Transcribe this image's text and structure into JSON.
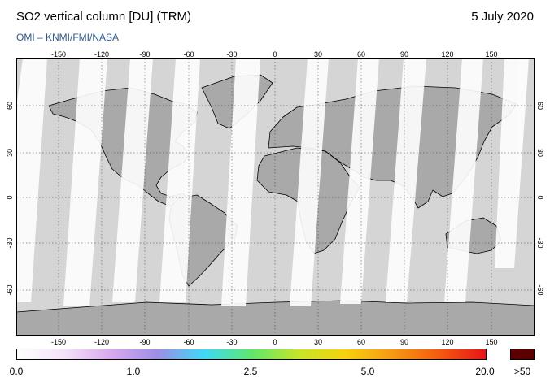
{
  "header": {
    "title": "SO2 vertical column [DU] (TRM)",
    "date": "5 July 2020",
    "subtitle": "OMI  –  KNMI/FMI/NASA"
  },
  "map": {
    "projection": "equirectangular",
    "lon_ticks": [
      "-150",
      "-120",
      "-90",
      "-60",
      "-30",
      "0",
      "30",
      "60",
      "90",
      "120",
      "150"
    ],
    "lat_ticks": [
      "60",
      "30",
      "0",
      "-30",
      "-60"
    ],
    "colors": {
      "ocean": "#d5d5d5",
      "land": "#a9a9a9",
      "swath": "#ffffff",
      "coastline": "#000000",
      "grid": "#333333"
    }
  },
  "colorbar": {
    "labels": [
      "0.0",
      "1.0",
      "2.5",
      "5.0",
      "20.0"
    ],
    "max_label": ">50",
    "max_color": "#5a0000",
    "gradient": [
      "#ffffff",
      "#f4e2f8",
      "#d9a9ee",
      "#9d8ee4",
      "#3fd9f5",
      "#5fe66e",
      "#c5e628",
      "#f6d20e",
      "#f79a12",
      "#f45b10",
      "#e8141a"
    ]
  }
}
